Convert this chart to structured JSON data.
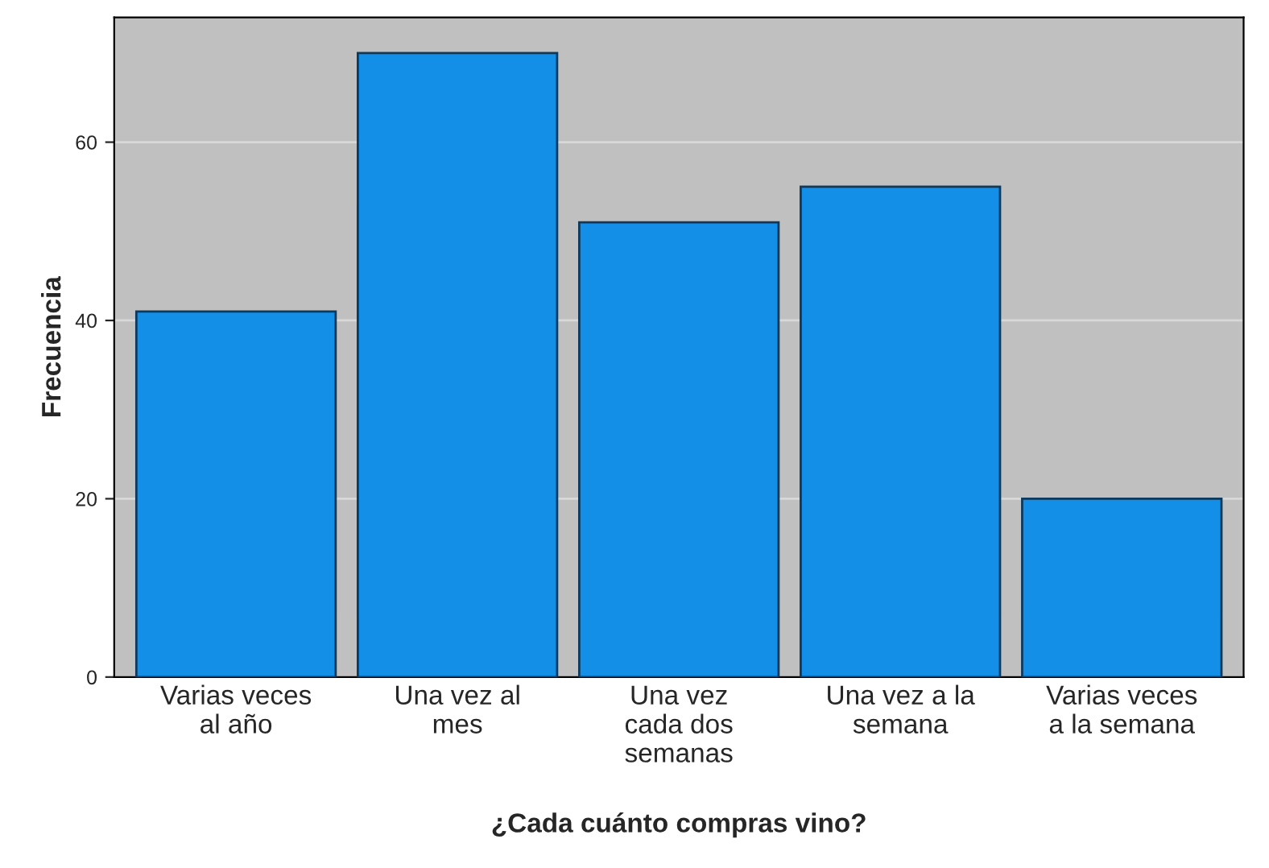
{
  "chart_data": {
    "type": "bar",
    "xlabel": "¿Cada cuánto compras vino?",
    "ylabel": "Frecuencia",
    "categories": [
      "Varias veces\nal año",
      "Una vez al\nmes",
      "Una vez\ncada dos\nsemanas",
      "Una vez a la\nsemana",
      "Varias veces\na la semana"
    ],
    "values": [
      41,
      70,
      51,
      55,
      20
    ],
    "color": "#148fe8",
    "ylim": [
      0,
      74
    ],
    "yticks": [
      0,
      20,
      40,
      60
    ],
    "grid": "y"
  }
}
